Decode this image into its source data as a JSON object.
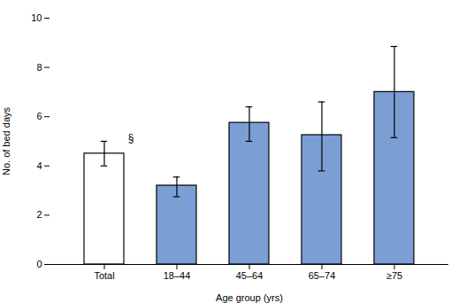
{
  "chart_data": {
    "type": "bar",
    "categories": [
      "Total",
      "18–44",
      "45–64",
      "65–74",
      "≥75"
    ],
    "values": [
      4.5,
      3.2,
      5.75,
      5.25,
      7.0
    ],
    "errors_upper": [
      0.5,
      0.35,
      0.65,
      1.35,
      1.85
    ],
    "errors_lower": [
      0.5,
      0.45,
      0.75,
      1.45,
      1.85
    ],
    "colors": [
      "white",
      "#7b9fd4",
      "#7b9fd4",
      "#7b9fd4",
      "#7b9fd4"
    ],
    "xlabel": "Age group (yrs)",
    "ylabel": "No. of bed days",
    "ylim": [
      0,
      10
    ],
    "yticks": [
      0,
      2,
      4,
      6,
      8,
      10
    ],
    "grid": false,
    "annotation": {
      "text": "§",
      "category": "Total"
    }
  }
}
